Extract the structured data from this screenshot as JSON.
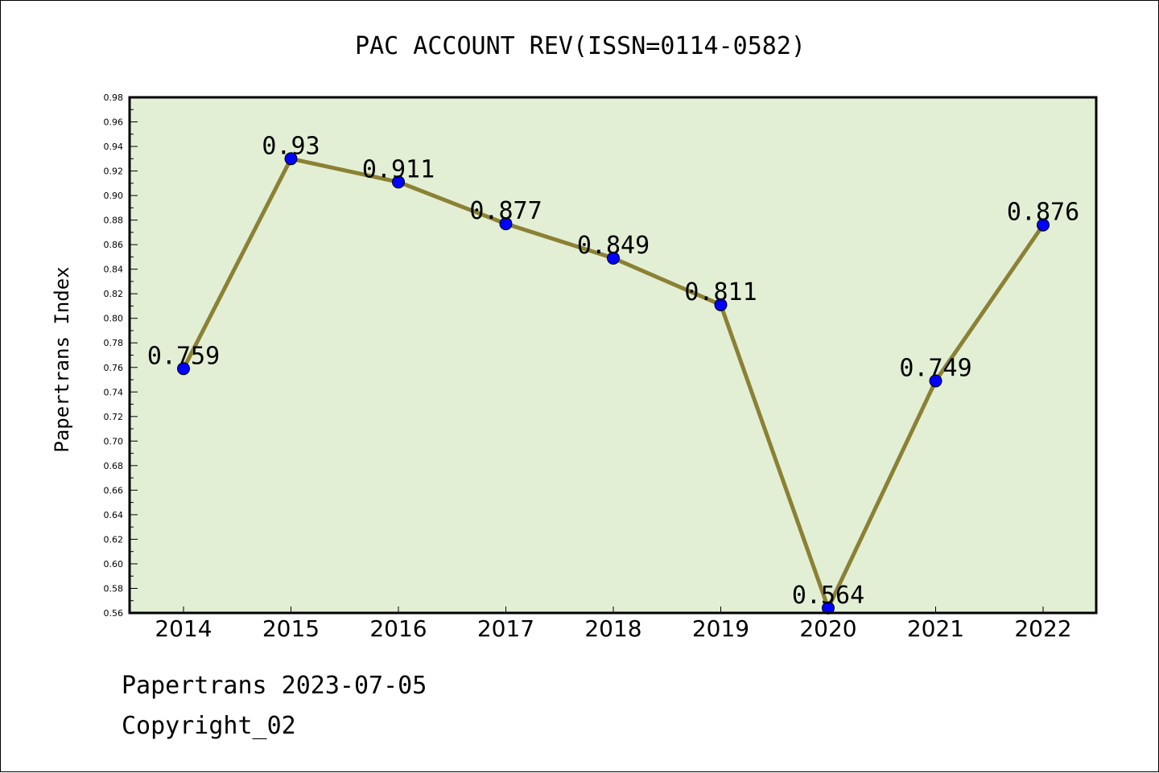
{
  "chart_data": {
    "type": "line",
    "title": "PAC ACCOUNT REV(ISSN=0114-0582)",
    "xlabel": "",
    "ylabel": "Papertrans Index",
    "categories": [
      "2014",
      "2015",
      "2016",
      "2017",
      "2018",
      "2019",
      "2020",
      "2021",
      "2022"
    ],
    "series": [
      {
        "values": [
          0.759,
          0.93,
          0.911,
          0.877,
          0.849,
          0.811,
          0.564,
          0.749,
          0.876
        ]
      }
    ],
    "data_labels": [
      "0.759",
      "0.93",
      "0.911",
      "0.877",
      "0.849",
      "0.811",
      "0.564",
      "0.749",
      "0.876"
    ],
    "ylim": [
      0.56,
      0.98
    ],
    "yticks": [
      "0.56",
      "0.58",
      "0.60",
      "0.62",
      "0.64",
      "0.66",
      "0.68",
      "0.70",
      "0.72",
      "0.74",
      "0.76",
      "0.78",
      "0.80",
      "0.82",
      "0.84",
      "0.86",
      "0.88",
      "0.90",
      "0.92",
      "0.94",
      "0.96",
      "0.98"
    ],
    "grid": false,
    "legend": "none",
    "colors": {
      "plot_background": "#e2efd5",
      "line": "#8b8134",
      "marker": "#0000ff"
    }
  },
  "footer": {
    "line1": "Papertrans 2023-07-05",
    "line2": "Copyright_02"
  }
}
